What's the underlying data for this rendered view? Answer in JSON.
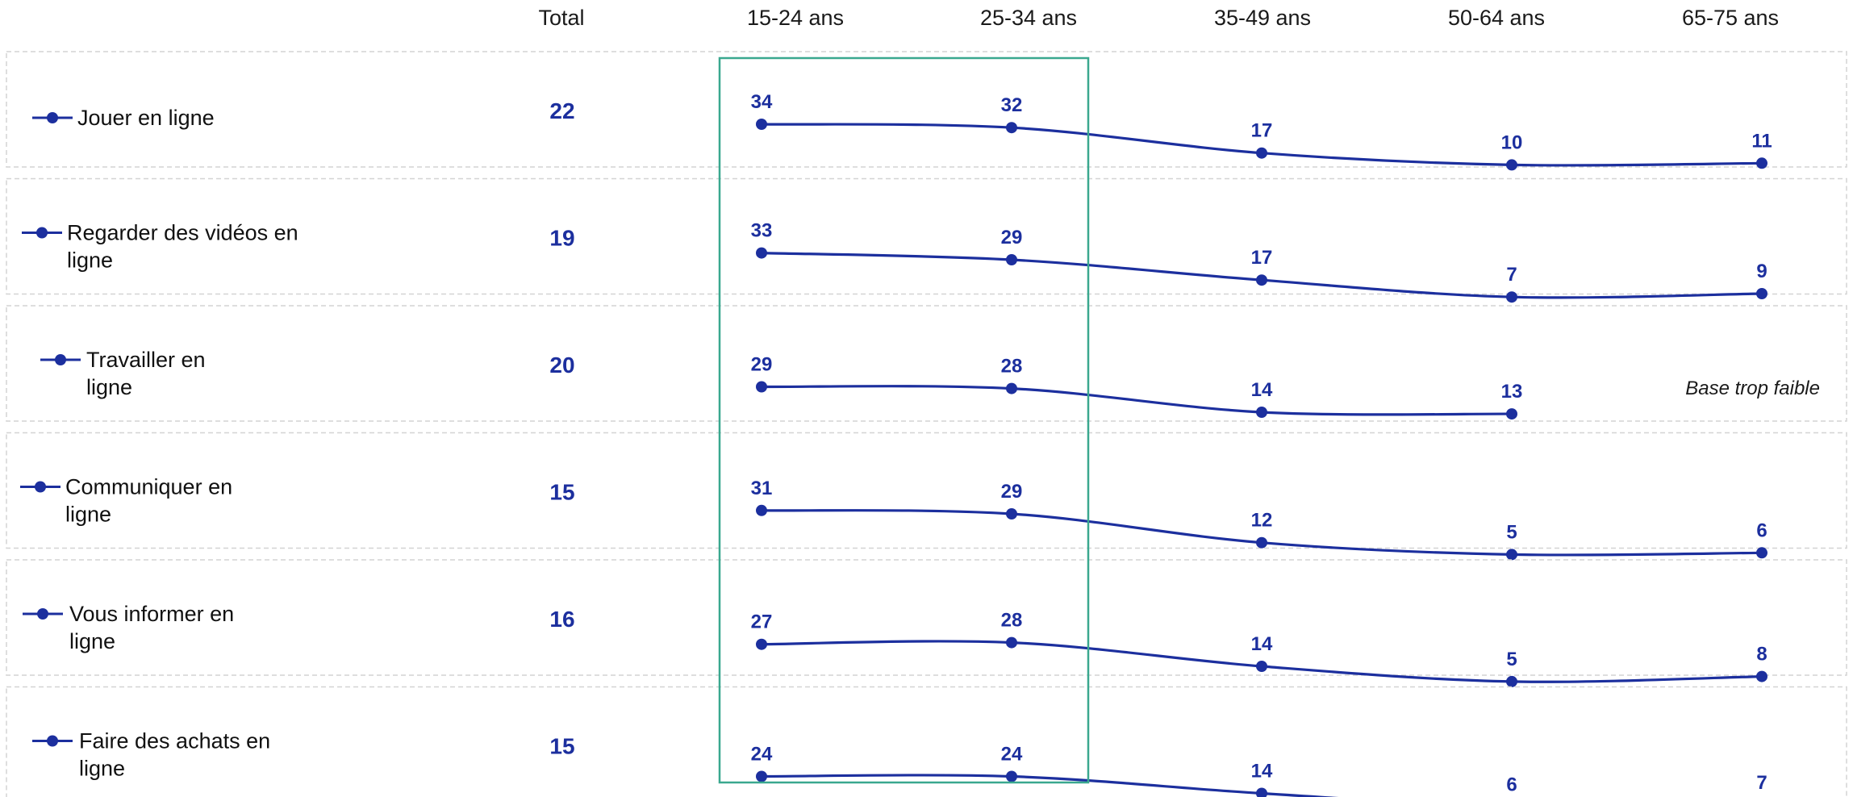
{
  "chart_data": {
    "type": "line",
    "columns": [
      "Total",
      "15-24 ans",
      "25-34 ans",
      "35-49 ans",
      "50-64 ans",
      "65-75 ans"
    ],
    "x": [
      "15-24 ans",
      "25-34 ans",
      "35-49 ans",
      "50-64 ans",
      "65-75 ans"
    ],
    "series": [
      {
        "name": "Jouer en ligne",
        "total": 22,
        "values": [
          34,
          32,
          17,
          10,
          11
        ],
        "note": ""
      },
      {
        "name": "Regarder des vidéos en ligne",
        "total": 19,
        "values": [
          33,
          29,
          17,
          7,
          9
        ],
        "note": ""
      },
      {
        "name": "Travailler en ligne",
        "total": 20,
        "values": [
          29,
          28,
          14,
          13,
          null
        ],
        "note": "Base trop faible"
      },
      {
        "name": "Communiquer en ligne",
        "total": 15,
        "values": [
          31,
          29,
          12,
          5,
          6
        ],
        "note": ""
      },
      {
        "name": "Vous informer en ligne",
        "total": 16,
        "values": [
          27,
          28,
          14,
          5,
          8
        ],
        "note": ""
      },
      {
        "name": "Faire des achats en ligne",
        "total": 15,
        "values": [
          24,
          24,
          14,
          6,
          7
        ],
        "note": ""
      }
    ],
    "row_label_lines": [
      [
        "Jouer en ligne"
      ],
      [
        "Regarder des vidéos en",
        "ligne"
      ],
      [
        "Travailler en",
        "ligne"
      ],
      [
        "Communiquer en",
        "ligne"
      ],
      [
        "Vous informer en",
        "ligne"
      ],
      [
        "Faire des achats en",
        "ligne"
      ]
    ],
    "highlighted_columns": [
      "15-24 ans",
      "25-34 ans"
    ],
    "colors": {
      "series": "#1c2f9e",
      "highlight": "#3aa88f",
      "row_border": "#d4d4d4"
    }
  }
}
